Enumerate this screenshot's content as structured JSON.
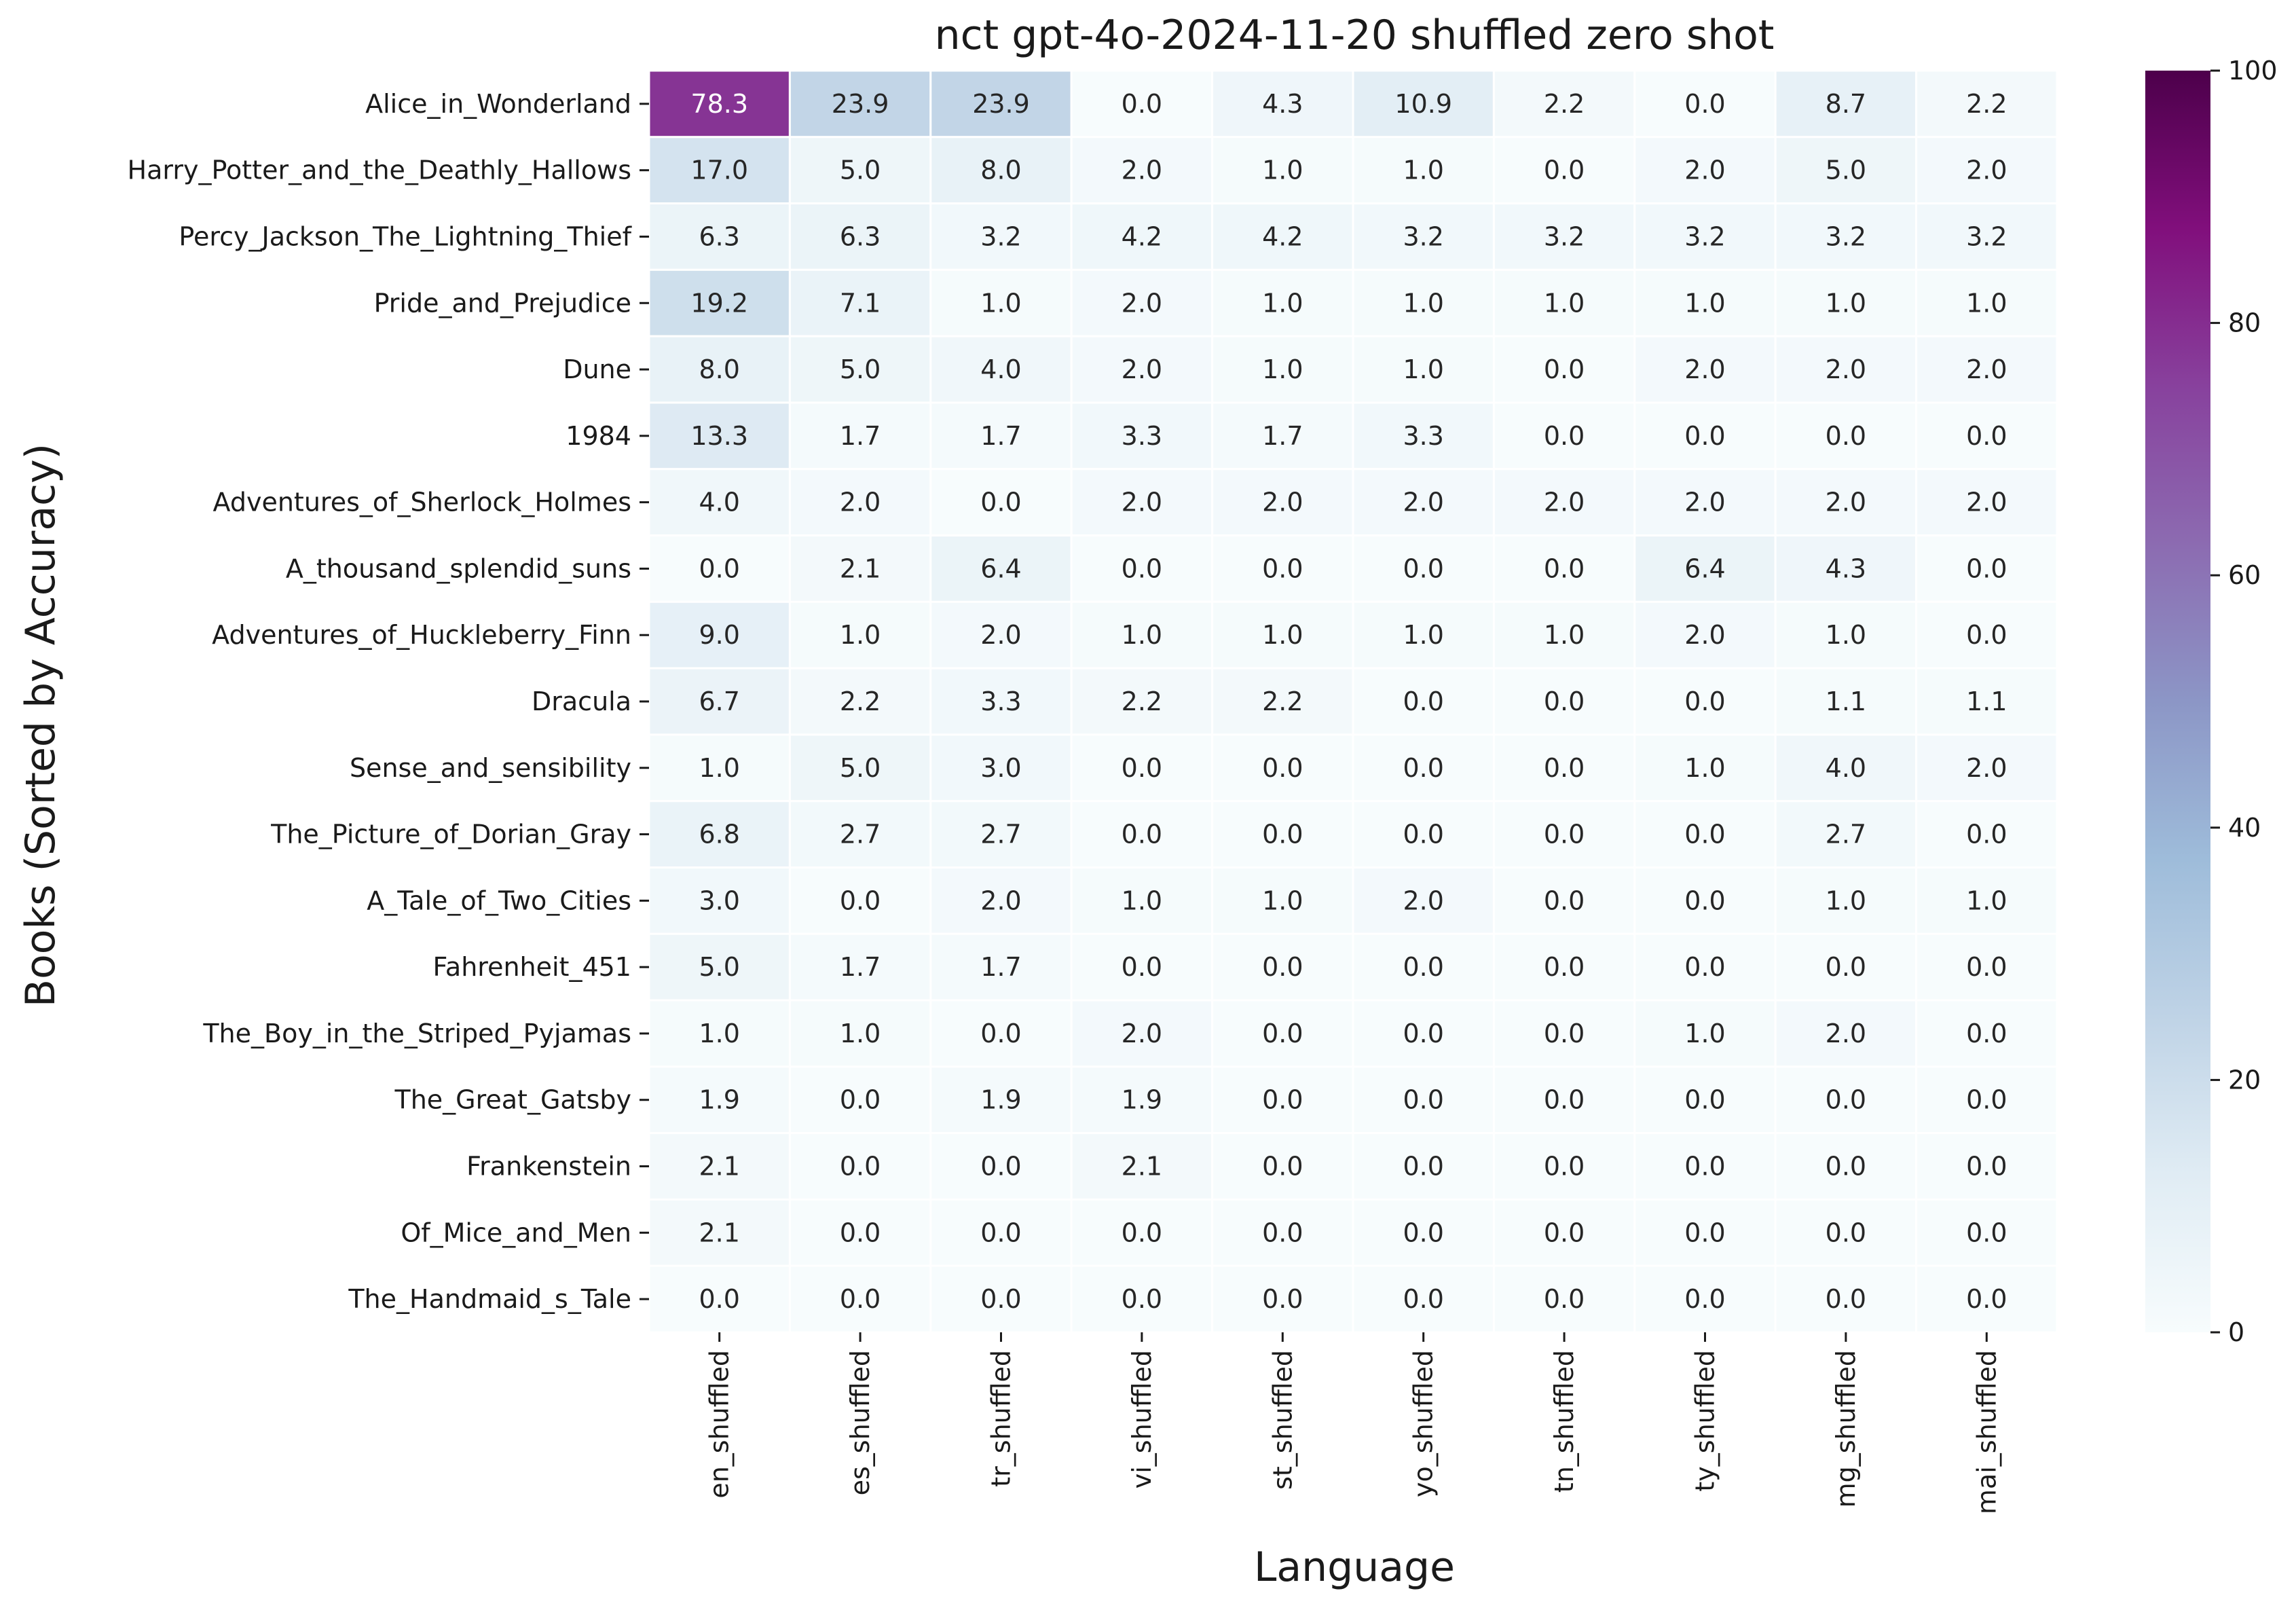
{
  "chart_data": {
    "type": "heatmap",
    "title": "nct gpt-4o-2024-11-20 shuffled zero shot",
    "xlabel": "Language",
    "ylabel": "Books (Sorted by Accuracy)",
    "x": [
      "en_shuffled",
      "es_shuffled",
      "tr_shuffled",
      "vi_shuffled",
      "st_shuffled",
      "yo_shuffled",
      "tn_shuffled",
      "ty_shuffled",
      "mg_shuffled",
      "mai_shuffled"
    ],
    "y": [
      "Alice_in_Wonderland",
      "Harry_Potter_and_the_Deathly_Hallows",
      "Percy_Jackson_The_Lightning_Thief",
      "Pride_and_Prejudice",
      "Dune",
      "1984",
      "Adventures_of_Sherlock_Holmes",
      "A_thousand_splendid_suns",
      "Adventures_of_Huckleberry_Finn",
      "Dracula",
      "Sense_and_sensibility",
      "The_Picture_of_Dorian_Gray",
      "A_Tale_of_Two_Cities",
      "Fahrenheit_451",
      "The_Boy_in_the_Striped_Pyjamas",
      "The_Great_Gatsby",
      "Frankenstein",
      "Of_Mice_and_Men",
      "The_Handmaid_s_Tale"
    ],
    "values": [
      [
        78.3,
        23.9,
        23.9,
        0.0,
        4.3,
        10.9,
        2.2,
        0.0,
        8.7,
        2.2
      ],
      [
        17.0,
        5.0,
        8.0,
        2.0,
        1.0,
        1.0,
        0.0,
        2.0,
        5.0,
        2.0
      ],
      [
        6.3,
        6.3,
        3.2,
        4.2,
        4.2,
        3.2,
        3.2,
        3.2,
        3.2,
        3.2
      ],
      [
        19.2,
        7.1,
        1.0,
        2.0,
        1.0,
        1.0,
        1.0,
        1.0,
        1.0,
        1.0
      ],
      [
        8.0,
        5.0,
        4.0,
        2.0,
        1.0,
        1.0,
        0.0,
        2.0,
        2.0,
        2.0
      ],
      [
        13.3,
        1.7,
        1.7,
        3.3,
        1.7,
        3.3,
        0.0,
        0.0,
        0.0,
        0.0
      ],
      [
        4.0,
        2.0,
        0.0,
        2.0,
        2.0,
        2.0,
        2.0,
        2.0,
        2.0,
        2.0
      ],
      [
        0.0,
        2.1,
        6.4,
        0.0,
        0.0,
        0.0,
        0.0,
        6.4,
        4.3,
        0.0
      ],
      [
        9.0,
        1.0,
        2.0,
        1.0,
        1.0,
        1.0,
        1.0,
        2.0,
        1.0,
        0.0
      ],
      [
        6.7,
        2.2,
        3.3,
        2.2,
        2.2,
        0.0,
        0.0,
        0.0,
        1.1,
        1.1
      ],
      [
        1.0,
        5.0,
        3.0,
        0.0,
        0.0,
        0.0,
        0.0,
        1.0,
        4.0,
        2.0
      ],
      [
        6.8,
        2.7,
        2.7,
        0.0,
        0.0,
        0.0,
        0.0,
        0.0,
        2.7,
        0.0
      ],
      [
        3.0,
        0.0,
        2.0,
        1.0,
        1.0,
        2.0,
        0.0,
        0.0,
        1.0,
        1.0
      ],
      [
        5.0,
        1.7,
        1.7,
        0.0,
        0.0,
        0.0,
        0.0,
        0.0,
        0.0,
        0.0
      ],
      [
        1.0,
        1.0,
        0.0,
        2.0,
        0.0,
        0.0,
        0.0,
        1.0,
        2.0,
        0.0
      ],
      [
        1.9,
        0.0,
        1.9,
        1.9,
        0.0,
        0.0,
        0.0,
        0.0,
        0.0,
        0.0
      ],
      [
        2.1,
        0.0,
        0.0,
        2.1,
        0.0,
        0.0,
        0.0,
        0.0,
        0.0,
        0.0
      ],
      [
        2.1,
        0.0,
        0.0,
        0.0,
        0.0,
        0.0,
        0.0,
        0.0,
        0.0,
        0.0
      ],
      [
        0.0,
        0.0,
        0.0,
        0.0,
        0.0,
        0.0,
        0.0,
        0.0,
        0.0,
        0.0
      ]
    ],
    "colormap": "BuPu",
    "vmin": 0,
    "vmax": 100,
    "colorbar_ticks": [
      0,
      20,
      40,
      60,
      80,
      100
    ],
    "colorbar_stops": [
      "#f7fcfd",
      "#e0ecf4",
      "#bfd3e6",
      "#9ebcda",
      "#8c96c6",
      "#8c6bb1",
      "#88419d",
      "#810f7c",
      "#4d004b"
    ],
    "annotation_light_color": "#ffffff",
    "annotation_dark_color": "#262626"
  }
}
